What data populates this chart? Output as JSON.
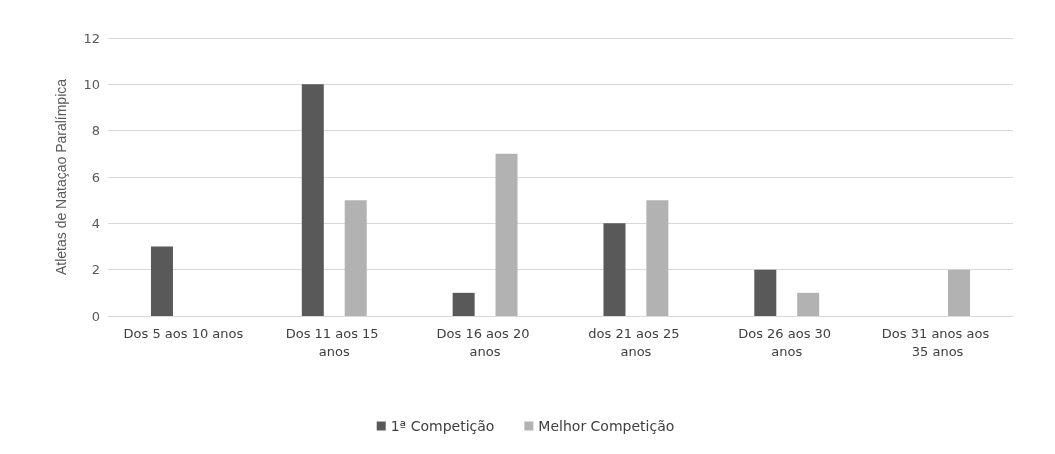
{
  "chart_data": {
    "type": "bar",
    "ylabel": "Atletas de Nataçao Paralímpica",
    "categories": [
      "Dos 5 aos 10 anos",
      "Dos 11 aos 15 anos",
      "Dos 16 aos 20 anos",
      "dos 21 aos 25 anos",
      "Dos 26 aos 30 anos",
      "Dos 31 anos aos 35 anos"
    ],
    "series": [
      {
        "name": "1ª Competição",
        "color": "#595959",
        "values": [
          3,
          10,
          1,
          4,
          2,
          0
        ]
      },
      {
        "name": "Melhor Competição",
        "color": "#b2b2b2",
        "values": [
          0,
          5,
          7,
          5,
          1,
          2
        ]
      }
    ],
    "ylim": [
      0,
      12
    ],
    "yticks": [
      0,
      2,
      4,
      6,
      8,
      10,
      12
    ],
    "grid": "y",
    "legend": "bottom"
  }
}
